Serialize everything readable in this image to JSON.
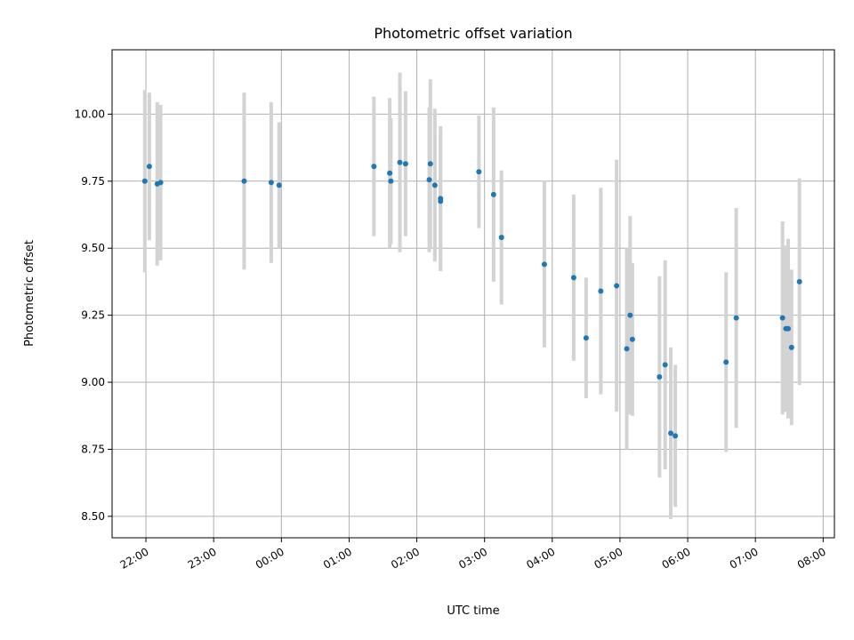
{
  "chart_data": {
    "type": "scatter",
    "title": "Photometric offset variation",
    "xlabel": "UTC time",
    "ylabel": "Photometric offset",
    "x_tick_labels": [
      "22:00",
      "23:00",
      "00:00",
      "01:00",
      "02:00",
      "03:00",
      "04:00",
      "05:00",
      "06:00",
      "07:00",
      "08:00"
    ],
    "y_tick_labels": [
      "8.50",
      "8.75",
      "9.00",
      "9.25",
      "9.50",
      "9.75",
      "10.00"
    ],
    "y_ticks": [
      8.5,
      8.75,
      9.0,
      9.25,
      9.5,
      9.75,
      10.0
    ],
    "xlim": [
      "21:30",
      "08:10"
    ],
    "ylim": [
      8.42,
      10.24
    ],
    "grid": true,
    "colors": {
      "marker": "#1f77b4",
      "error_bar": "#d3d3d3",
      "grid": "#b0b0b0"
    },
    "series": [
      {
        "points": [
          {
            "x": "21:59",
            "y": 9.75,
            "err": 0.34
          },
          {
            "x": "22:03",
            "y": 9.805,
            "err": 0.275
          },
          {
            "x": "22:10",
            "y": 9.74,
            "err": 0.305
          },
          {
            "x": "22:13",
            "y": 9.745,
            "err": 0.29
          },
          {
            "x": "23:27",
            "y": 9.75,
            "err": 0.33
          },
          {
            "x": "23:51",
            "y": 9.745,
            "err": 0.3
          },
          {
            "x": "23:58",
            "y": 9.735,
            "err": 0.235
          },
          {
            "x": "01:22",
            "y": 9.805,
            "err": 0.26
          },
          {
            "x": "01:36",
            "y": 9.78,
            "err": 0.28
          },
          {
            "x": "01:37",
            "y": 9.75,
            "err": 0.235
          },
          {
            "x": "01:45",
            "y": 9.82,
            "err": 0.335
          },
          {
            "x": "01:50",
            "y": 9.815,
            "err": 0.27
          },
          {
            "x": "02:11",
            "y": 9.755,
            "err": 0.27
          },
          {
            "x": "02:12",
            "y": 9.815,
            "err": 0.315
          },
          {
            "x": "02:16",
            "y": 9.735,
            "err": 0.285
          },
          {
            "x": "02:21",
            "y": 9.685,
            "err": 0.27
          },
          {
            "x": "02:21",
            "y": 9.675,
            "err": 0.26
          },
          {
            "x": "02:55",
            "y": 9.785,
            "err": 0.21
          },
          {
            "x": "03:08",
            "y": 9.7,
            "err": 0.325
          },
          {
            "x": "03:15",
            "y": 9.54,
            "err": 0.25
          },
          {
            "x": "03:53",
            "y": 9.44,
            "err": 0.31
          },
          {
            "x": "04:19",
            "y": 9.39,
            "err": 0.31
          },
          {
            "x": "04:30",
            "y": 9.165,
            "err": 0.225
          },
          {
            "x": "04:43",
            "y": 9.34,
            "err": 0.385
          },
          {
            "x": "04:57",
            "y": 9.36,
            "err": 0.47
          },
          {
            "x": "05:06",
            "y": 9.125,
            "err": 0.375
          },
          {
            "x": "05:09",
            "y": 9.25,
            "err": 0.37
          },
          {
            "x": "05:11",
            "y": 9.16,
            "err": 0.285
          },
          {
            "x": "05:35",
            "y": 9.02,
            "err": 0.375
          },
          {
            "x": "05:40",
            "y": 9.065,
            "err": 0.39
          },
          {
            "x": "05:45",
            "y": 8.81,
            "err": 0.32
          },
          {
            "x": "05:49",
            "y": 8.8,
            "err": 0.265
          },
          {
            "x": "06:34",
            "y": 9.075,
            "err": 0.335
          },
          {
            "x": "06:43",
            "y": 9.24,
            "err": 0.41
          },
          {
            "x": "07:24",
            "y": 9.24,
            "err": 0.36
          },
          {
            "x": "07:27",
            "y": 9.2,
            "err": 0.31
          },
          {
            "x": "07:29",
            "y": 9.2,
            "err": 0.335
          },
          {
            "x": "07:32",
            "y": 9.13,
            "err": 0.29
          },
          {
            "x": "07:39",
            "y": 9.375,
            "err": 0.385
          }
        ]
      }
    ]
  }
}
